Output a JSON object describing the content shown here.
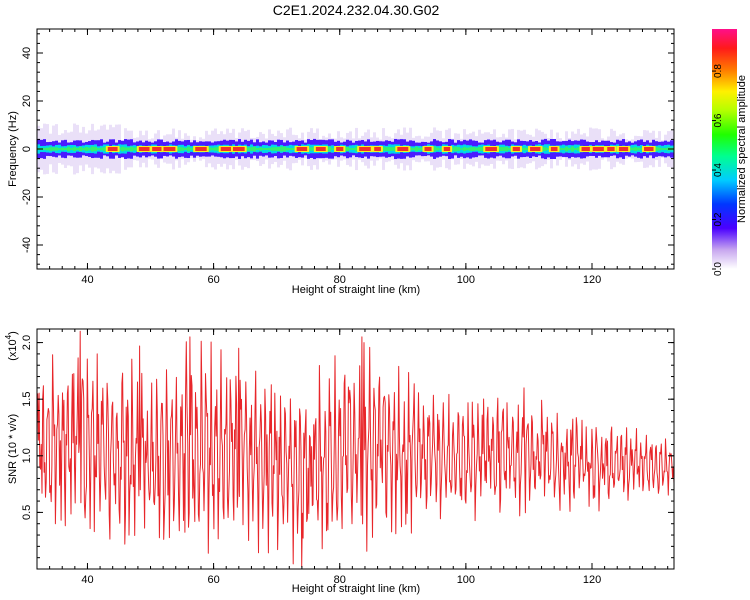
{
  "title": "C2E1.2024.232.04.30.G02",
  "chart_data": [
    {
      "type": "heatmap",
      "xlabel": "Height of straight line (km)",
      "ylabel": "Frequency (Hz)",
      "xlim": [
        32,
        133
      ],
      "ylim": [
        -50,
        50
      ],
      "xticks": [
        40,
        60,
        80,
        100,
        120
      ],
      "yticks": [
        -40,
        -20,
        0,
        20,
        40
      ],
      "colorbar": {
        "label": "Normalized spectral amplitude",
        "range": [
          0,
          0.97
        ],
        "ticks": [
          0.0,
          0.2,
          0.4,
          0.6,
          0.8
        ],
        "tick_labels": [
          "0.0",
          "0.2",
          "0.4",
          "0.6",
          "0.8"
        ]
      },
      "description_values": {
        "band_center_hz": 0,
        "core_halfwidth_hz": 2,
        "envelope_halfwidth_hz": 6,
        "peak_positions_km": [
          44,
          49,
          51,
          53,
          58,
          62,
          64,
          74,
          77,
          80,
          84,
          86,
          90,
          94,
          97,
          104,
          108,
          111,
          114,
          119,
          121,
          123,
          125,
          129
        ]
      }
    },
    {
      "type": "line",
      "xlabel": "Height of straight line (km)",
      "ylabel": "SNR (10 * v/v)",
      "ylabel_multiplier": "(x10",
      "ylabel_multiplier_exp": "4",
      "ylabel_multiplier_close": ")",
      "xlim": [
        32,
        133
      ],
      "ylim": [
        0.0,
        2.12
      ],
      "xticks": [
        40,
        60,
        80,
        100,
        120
      ],
      "yticks": [
        0.5,
        1.0,
        1.5,
        2.0
      ],
      "ytick_labels": [
        "0.5",
        "1.0",
        "1.5",
        "2.0"
      ],
      "series_color": "#e8262a",
      "envelope": [
        {
          "x": 32,
          "min": 0.35,
          "max": 1.8
        },
        {
          "x": 40,
          "min": 0.15,
          "max": 2.1
        },
        {
          "x": 50,
          "min": 0.1,
          "max": 1.75
        },
        {
          "x": 56,
          "min": 0.1,
          "max": 2.05
        },
        {
          "x": 64,
          "min": 0.2,
          "max": 1.95
        },
        {
          "x": 74,
          "min": 0.02,
          "max": 1.7
        },
        {
          "x": 84,
          "min": 0.15,
          "max": 2.05
        },
        {
          "x": 95,
          "min": 0.4,
          "max": 1.55
        },
        {
          "x": 109,
          "min": 0.45,
          "max": 1.6
        },
        {
          "x": 120,
          "min": 0.5,
          "max": 1.35
        },
        {
          "x": 133,
          "min": 0.65,
          "max": 1.15
        }
      ],
      "notable_peaks": [
        {
          "x": 38.8,
          "y": 2.1
        },
        {
          "x": 56.2,
          "y": 2.05
        },
        {
          "x": 83.5,
          "y": 2.05
        },
        {
          "x": 48.3,
          "y": 1.97
        },
        {
          "x": 64.0,
          "y": 1.95
        },
        {
          "x": 41.5,
          "y": 1.9
        },
        {
          "x": 109.2,
          "y": 1.6
        },
        {
          "x": 74.0,
          "y": 0.02
        }
      ]
    }
  ]
}
